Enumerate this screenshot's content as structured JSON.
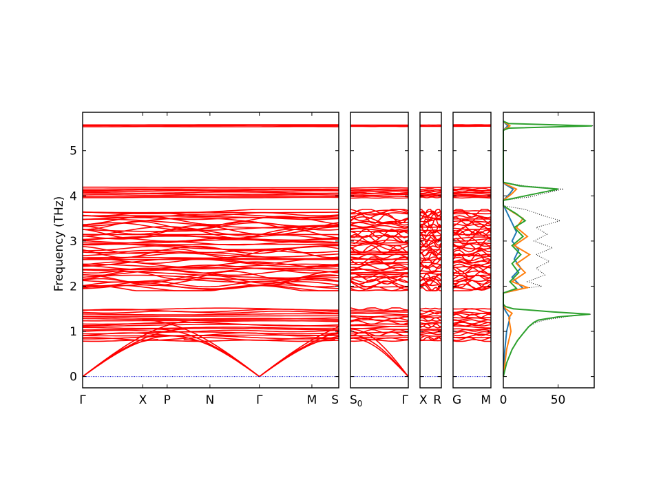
{
  "chart_data": {
    "type": "line",
    "ylabel": "Frequency (THz)",
    "ylim": [
      -0.25,
      5.85
    ],
    "yticks": [
      0,
      1,
      2,
      3,
      4,
      5
    ],
    "band_color": "#ff0000",
    "zero_line_color": "#0000cc",
    "panels": [
      {
        "kind": "band-structure",
        "xticks": [
          {
            "label": "Γ",
            "pos": 0.0
          },
          {
            "label": "X",
            "pos": 0.235
          },
          {
            "label": "P",
            "pos": 0.33
          },
          {
            "label": "N",
            "pos": 0.497
          },
          {
            "label": "Γ",
            "pos": 0.69
          },
          {
            "label": "M",
            "pos": 0.895
          },
          {
            "label": "S",
            "pos": 1.0
          }
        ]
      },
      {
        "kind": "band-structure",
        "xticks": [
          {
            "label": "S",
            "sub": "0",
            "pos": 0.0
          },
          {
            "label": "Γ",
            "pos": 1.0
          }
        ]
      },
      {
        "kind": "band-structure",
        "xticks": [
          {
            "label": "X",
            "pos": 0.0
          },
          {
            "label": "R",
            "pos": 1.0
          }
        ]
      },
      {
        "kind": "band-structure",
        "xticks": [
          {
            "label": "G",
            "pos": 0.0
          },
          {
            "label": "M",
            "pos": 1.0
          }
        ]
      }
    ],
    "dos": {
      "kind": "density-of-states",
      "xlim": [
        0,
        83
      ],
      "xticks": [
        0,
        50
      ],
      "series": [
        {
          "color": "#000000",
          "style": "dotted",
          "points": [
            [
              0,
              0.0
            ],
            [
              3,
              0.3
            ],
            [
              8,
              0.6
            ],
            [
              13,
              0.8
            ],
            [
              18,
              0.95
            ],
            [
              23,
              1.1
            ],
            [
              30,
              1.2
            ],
            [
              38,
              1.25
            ],
            [
              58,
              1.33
            ],
            [
              80,
              1.38
            ],
            [
              48,
              1.43
            ],
            [
              10,
              1.5
            ],
            [
              2,
              1.55
            ],
            [
              0,
              1.6
            ],
            [
              0,
              1.85
            ],
            [
              18,
              1.95
            ],
            [
              35,
              2.0
            ],
            [
              22,
              2.1
            ],
            [
              38,
              2.25
            ],
            [
              30,
              2.4
            ],
            [
              42,
              2.55
            ],
            [
              30,
              2.7
            ],
            [
              45,
              2.85
            ],
            [
              28,
              3.0
            ],
            [
              40,
              3.15
            ],
            [
              30,
              3.3
            ],
            [
              52,
              3.45
            ],
            [
              38,
              3.55
            ],
            [
              20,
              3.7
            ],
            [
              0,
              3.78
            ],
            [
              0,
              3.9
            ],
            [
              25,
              3.98
            ],
            [
              45,
              4.1
            ],
            [
              55,
              4.15
            ],
            [
              20,
              4.22
            ],
            [
              0,
              4.3
            ],
            [
              0,
              5.45
            ],
            [
              5,
              5.5
            ],
            [
              83,
              5.55
            ],
            [
              5,
              5.6
            ],
            [
              0,
              5.65
            ]
          ]
        },
        {
          "color": "#1f77b4",
          "style": "solid",
          "points": [
            [
              0,
              0.0
            ],
            [
              1,
              0.5
            ],
            [
              3,
              1.0
            ],
            [
              6,
              1.3
            ],
            [
              2,
              1.45
            ],
            [
              0,
              1.55
            ],
            [
              0,
              1.85
            ],
            [
              18,
              1.95
            ],
            [
              14,
              2.05
            ],
            [
              8,
              2.2
            ],
            [
              16,
              2.4
            ],
            [
              10,
              2.6
            ],
            [
              14,
              2.8
            ],
            [
              8,
              3.0
            ],
            [
              12,
              3.2
            ],
            [
              6,
              3.5
            ],
            [
              2,
              3.7
            ],
            [
              0,
              3.8
            ],
            [
              0,
              3.9
            ],
            [
              6,
              4.05
            ],
            [
              9,
              4.15
            ],
            [
              2,
              4.25
            ],
            [
              0,
              4.3
            ],
            [
              0,
              5.45
            ],
            [
              4,
              5.55
            ],
            [
              0,
              5.65
            ]
          ]
        },
        {
          "color": "#ff7f0e",
          "style": "solid",
          "points": [
            [
              0,
              0.0
            ],
            [
              3,
              0.6
            ],
            [
              7,
              1.0
            ],
            [
              5,
              1.3
            ],
            [
              8,
              1.4
            ],
            [
              2,
              1.5
            ],
            [
              0,
              1.6
            ],
            [
              0,
              1.85
            ],
            [
              22,
              1.97
            ],
            [
              8,
              2.1
            ],
            [
              20,
              2.3
            ],
            [
              12,
              2.5
            ],
            [
              24,
              2.7
            ],
            [
              10,
              2.9
            ],
            [
              22,
              3.1
            ],
            [
              12,
              3.3
            ],
            [
              18,
              3.5
            ],
            [
              8,
              3.65
            ],
            [
              0,
              3.78
            ],
            [
              0,
              3.9
            ],
            [
              8,
              4.05
            ],
            [
              12,
              4.15
            ],
            [
              3,
              4.25
            ],
            [
              0,
              4.3
            ],
            [
              0,
              5.45
            ],
            [
              6,
              5.55
            ],
            [
              0,
              5.65
            ]
          ]
        },
        {
          "color": "#2ca02c",
          "style": "solid",
          "points": [
            [
              0,
              0.0
            ],
            [
              3,
              0.3
            ],
            [
              8,
              0.6
            ],
            [
              13,
              0.8
            ],
            [
              18,
              0.95
            ],
            [
              23,
              1.1
            ],
            [
              28,
              1.2
            ],
            [
              32,
              1.25
            ],
            [
              50,
              1.32
            ],
            [
              79,
              1.38
            ],
            [
              45,
              1.43
            ],
            [
              9,
              1.5
            ],
            [
              2,
              1.55
            ],
            [
              0,
              1.6
            ],
            [
              0,
              1.85
            ],
            [
              12,
              1.95
            ],
            [
              6,
              2.1
            ],
            [
              14,
              2.3
            ],
            [
              8,
              2.5
            ],
            [
              16,
              2.7
            ],
            [
              8,
              2.9
            ],
            [
              18,
              3.1
            ],
            [
              10,
              3.3
            ],
            [
              20,
              3.45
            ],
            [
              12,
              3.6
            ],
            [
              4,
              3.72
            ],
            [
              0,
              3.78
            ],
            [
              0,
              3.9
            ],
            [
              20,
              4.0
            ],
            [
              40,
              4.1
            ],
            [
              50,
              4.15
            ],
            [
              15,
              4.22
            ],
            [
              0,
              4.3
            ],
            [
              0,
              5.45
            ],
            [
              5,
              5.5
            ],
            [
              81,
              5.55
            ],
            [
              5,
              5.6
            ],
            [
              0,
              5.65
            ]
          ]
        }
      ]
    }
  }
}
